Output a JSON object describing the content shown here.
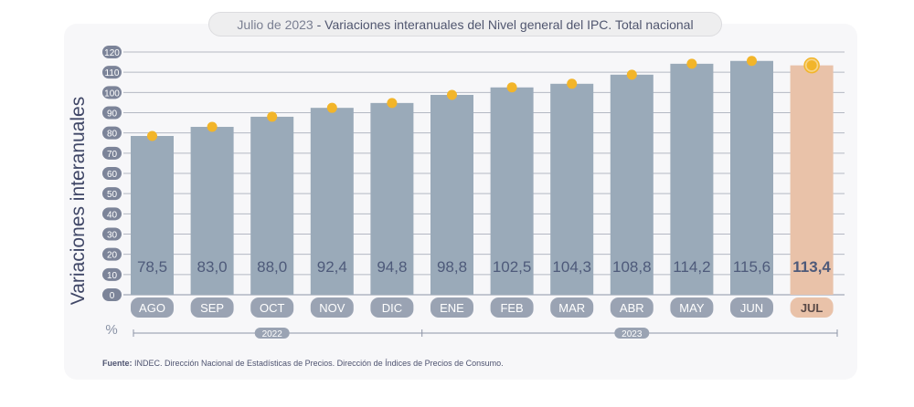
{
  "header": {
    "title_date": "Julio de 2023",
    "title_sep": " - ",
    "title_text": "Variaciones interanuales del Nivel general del IPC. Total nacional"
  },
  "chart_data": {
    "type": "bar",
    "ylabel": "Variaciones interanuales",
    "unit_label": "%",
    "ylim": [
      0,
      120
    ],
    "yticks": [
      0,
      10,
      20,
      30,
      40,
      50,
      60,
      70,
      80,
      90,
      100,
      110,
      120
    ],
    "grid": true,
    "categories": [
      "AGO",
      "SEP",
      "OCT",
      "NOV",
      "DIC",
      "ENE",
      "FEB",
      "MAR",
      "ABR",
      "MAY",
      "JUN",
      "JUL"
    ],
    "values": [
      78.5,
      83.0,
      88.0,
      92.4,
      94.8,
      98.8,
      102.5,
      104.3,
      108.8,
      114.2,
      115.6,
      113.4
    ],
    "value_labels": [
      "78,5",
      "83,0",
      "88,0",
      "92,4",
      "94,8",
      "98,8",
      "102,5",
      "104,3",
      "108,8",
      "114,2",
      "115,6",
      "113,4"
    ],
    "highlight_index": 11,
    "year_groups": [
      {
        "label": "2022",
        "from": 0,
        "to": 4
      },
      {
        "label": "2023",
        "from": 5,
        "to": 11
      }
    ],
    "colors": {
      "bar": "#9aaab9",
      "bar_highlight": "#e9c2a9",
      "marker": "#f2b52a",
      "tick_badge": "#9aa3b3",
      "value_text": "#4e5a7a"
    }
  },
  "footer": {
    "source_label": "Fuente:",
    "source_text": " INDEC. Dirección Nacional de Estadísticas de Precios. Dirección de Índices de Precios de Consumo."
  }
}
